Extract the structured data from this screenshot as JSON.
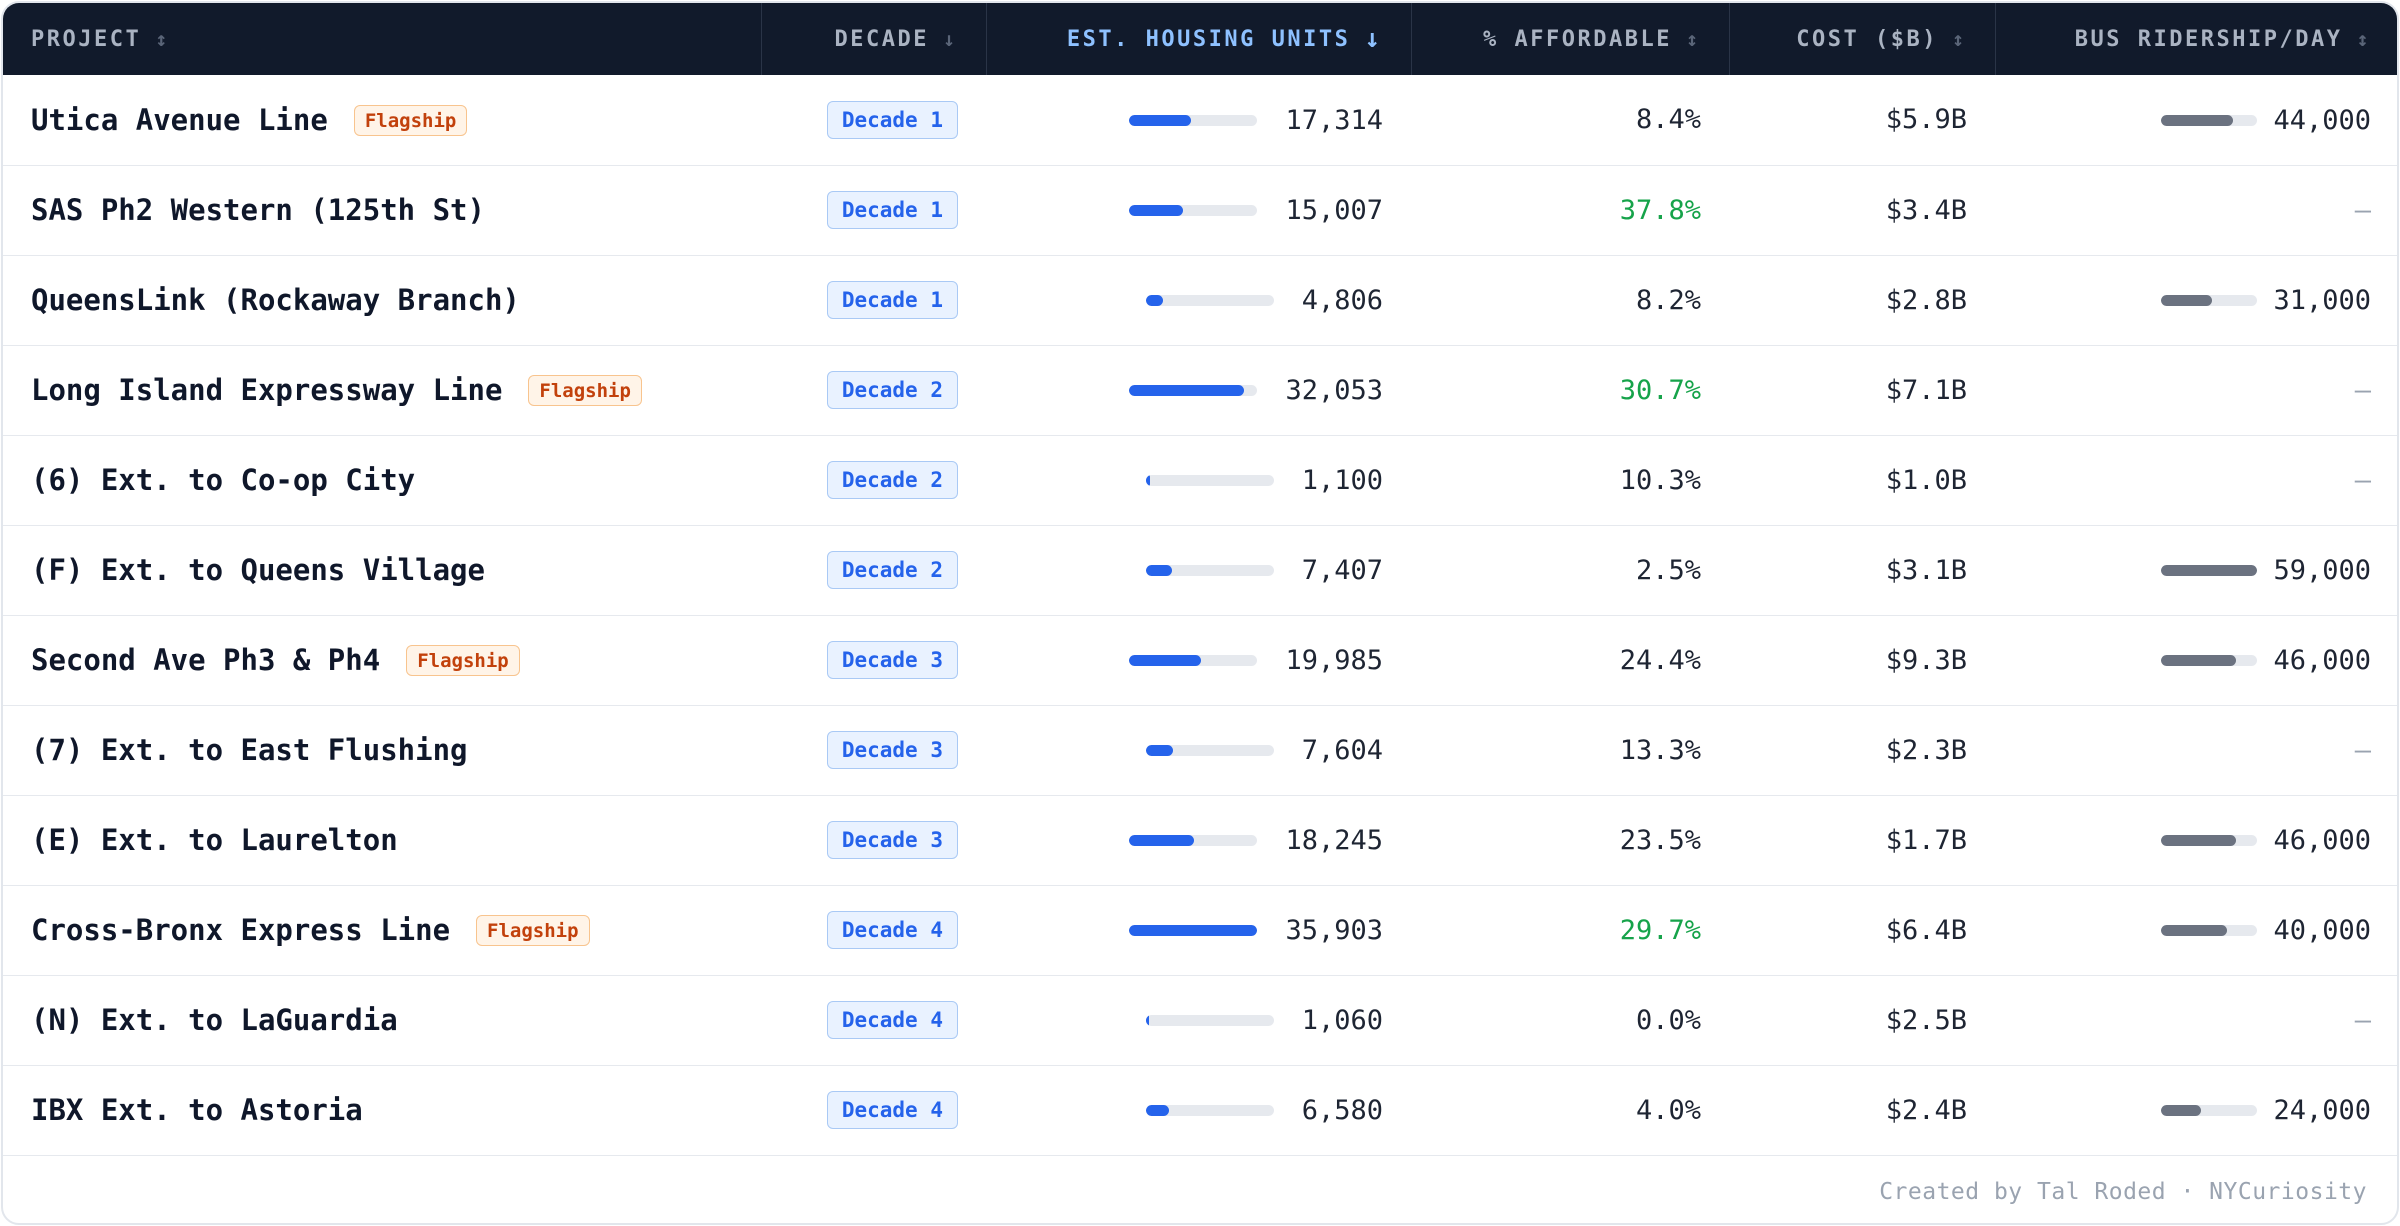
{
  "headers": {
    "project": "PROJECT",
    "decade": "DECADE",
    "housing": "EST. HOUSING UNITS",
    "afford": "% AFFORDABLE",
    "cost": "COST ($B)",
    "bus": "BUS RIDERSHIP/DAY"
  },
  "sort": {
    "column": "housing",
    "direction": "desc"
  },
  "colors": {
    "accent": "#2563eb",
    "header_bg": "#111a2b",
    "flag": "#c2410c",
    "green": "#16a34a",
    "bus_bar": "#6b7280"
  },
  "flag_label": "Flagship",
  "rows": [
    {
      "project": "Utica Avenue Line",
      "flagship": true,
      "decade": "Decade 1",
      "housing": "17,314",
      "housing_units": 17314,
      "afford": "8.4%",
      "afford_high": false,
      "cost": "$5.9B",
      "bus": "44,000",
      "bus_riders": 44000
    },
    {
      "project": "SAS Ph2 Western (125th St)",
      "flagship": false,
      "decade": "Decade 1",
      "housing": "15,007",
      "housing_units": 15007,
      "afford": "37.8%",
      "afford_high": true,
      "cost": "$3.4B",
      "bus": "—",
      "bus_riders": null
    },
    {
      "project": "QueensLink (Rockaway Branch)",
      "flagship": false,
      "decade": "Decade 1",
      "housing": "4,806",
      "housing_units": 4806,
      "afford": "8.2%",
      "afford_high": false,
      "cost": "$2.8B",
      "bus": "31,000",
      "bus_riders": 31000
    },
    {
      "project": "Long Island Expressway Line",
      "flagship": true,
      "decade": "Decade 2",
      "housing": "32,053",
      "housing_units": 32053,
      "afford": "30.7%",
      "afford_high": true,
      "cost": "$7.1B",
      "bus": "—",
      "bus_riders": null
    },
    {
      "project": "(6) Ext. to Co-op City",
      "flagship": false,
      "decade": "Decade 2",
      "housing": "1,100",
      "housing_units": 1100,
      "afford": "10.3%",
      "afford_high": false,
      "cost": "$1.0B",
      "bus": "—",
      "bus_riders": null
    },
    {
      "project": "(F) Ext. to Queens Village",
      "flagship": false,
      "decade": "Decade 2",
      "housing": "7,407",
      "housing_units": 7407,
      "afford": "2.5%",
      "afford_high": false,
      "cost": "$3.1B",
      "bus": "59,000",
      "bus_riders": 59000
    },
    {
      "project": "Second Ave Ph3 & Ph4",
      "flagship": true,
      "decade": "Decade 3",
      "housing": "19,985",
      "housing_units": 19985,
      "afford": "24.4%",
      "afford_high": false,
      "cost": "$9.3B",
      "bus": "46,000",
      "bus_riders": 46000
    },
    {
      "project": "(7) Ext. to East Flushing",
      "flagship": false,
      "decade": "Decade 3",
      "housing": "7,604",
      "housing_units": 7604,
      "afford": "13.3%",
      "afford_high": false,
      "cost": "$2.3B",
      "bus": "—",
      "bus_riders": null
    },
    {
      "project": "(E) Ext. to Laurelton",
      "flagship": false,
      "decade": "Decade 3",
      "housing": "18,245",
      "housing_units": 18245,
      "afford": "23.5%",
      "afford_high": false,
      "cost": "$1.7B",
      "bus": "46,000",
      "bus_riders": 46000
    },
    {
      "project": "Cross-Bronx Express Line",
      "flagship": true,
      "decade": "Decade 4",
      "housing": "35,903",
      "housing_units": 35903,
      "afford": "29.7%",
      "afford_high": true,
      "cost": "$6.4B",
      "bus": "40,000",
      "bus_riders": 40000
    },
    {
      "project": "(N) Ext. to LaGuardia",
      "flagship": false,
      "decade": "Decade 4",
      "housing": "1,060",
      "housing_units": 1060,
      "afford": "0.0%",
      "afford_high": false,
      "cost": "$2.5B",
      "bus": "—",
      "bus_riders": null
    },
    {
      "project": "IBX Ext. to Astoria",
      "flagship": false,
      "decade": "Decade 4",
      "housing": "6,580",
      "housing_units": 6580,
      "afford": "4.0%",
      "afford_high": false,
      "cost": "$2.4B",
      "bus": "24,000",
      "bus_riders": 24000
    }
  ],
  "scale": {
    "housing_max": 35903,
    "bus_max": 59000
  },
  "footer": "Created by Tal Roded · NYCuriosity"
}
